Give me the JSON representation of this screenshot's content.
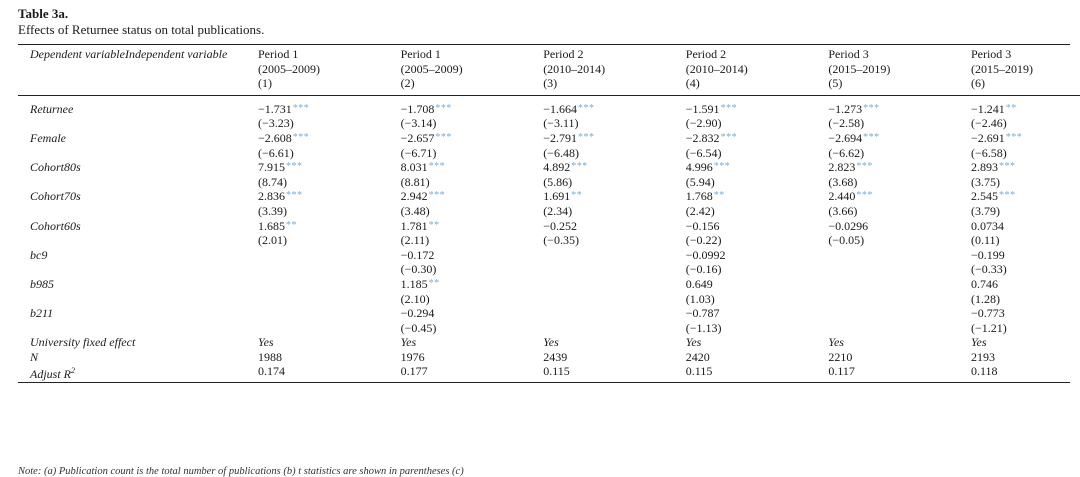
{
  "title": "Table 3a.",
  "caption": "Effects of Returnee status on total publications.",
  "header": {
    "first": "Dependent variableIndependent variable",
    "columns": [
      {
        "period": "Period 1",
        "years": "(2005–2009)",
        "num": "(1)"
      },
      {
        "period": "Period 1",
        "years": "(2005–2009)",
        "num": "(2)"
      },
      {
        "period": "Period 2",
        "years": "(2010–2014)",
        "num": "(3)"
      },
      {
        "period": "Period 2",
        "years": "(2010–2014)",
        "num": "(4)"
      },
      {
        "period": "Period 3",
        "years": "(2015–2019)",
        "num": "(5)"
      },
      {
        "period": "Period 3",
        "years": "(2015–2019)",
        "num": "(6)"
      }
    ]
  },
  "rows": [
    {
      "name": "Returnee",
      "coef": [
        "−1.731",
        "−1.708",
        "−1.664",
        "−1.591",
        "−1.273",
        "−1.241"
      ],
      "stars": [
        "***",
        "***",
        "***",
        "***",
        "***",
        "**"
      ],
      "t": [
        "(−3.23)",
        "(−3.14)",
        "(−3.11)",
        "(−2.90)",
        "(−2.58)",
        "(−2.46)"
      ]
    },
    {
      "name": "Female",
      "coef": [
        "−2.608",
        "−2.657",
        "−2.791",
        "−2.832",
        "−2.694",
        "−2.691"
      ],
      "stars": [
        "***",
        "***",
        "***",
        "***",
        "***",
        "***"
      ],
      "t": [
        "(−6.61)",
        "(−6.71)",
        "(−6.48)",
        "(−6.54)",
        "(−6.62)",
        "(−6.58)"
      ]
    },
    {
      "name": "Cohort80s",
      "coef": [
        "7.915",
        "8.031",
        "4.892",
        "4.996",
        "2.823",
        "2.893"
      ],
      "stars": [
        "***",
        "***",
        "***",
        "***",
        "***",
        "***"
      ],
      "t": [
        "(8.74)",
        "(8.81)",
        "(5.86)",
        "(5.94)",
        "(3.68)",
        "(3.75)"
      ]
    },
    {
      "name": "Cohort70s",
      "coef": [
        "2.836",
        "2.942",
        "1.691",
        "1.768",
        "2.440",
        "2.545"
      ],
      "stars": [
        "***",
        "***",
        "**",
        "**",
        "***",
        "***"
      ],
      "t": [
        "(3.39)",
        "(3.48)",
        "(2.34)",
        "(2.42)",
        "(3.66)",
        "(3.79)"
      ]
    },
    {
      "name": "Cohort60s",
      "coef": [
        "1.685",
        "1.781",
        "−0.252",
        "−0.156",
        "−0.0296",
        "0.0734"
      ],
      "stars": [
        "**",
        "**",
        "",
        "",
        "",
        ""
      ],
      "t": [
        "(2.01)",
        "(2.11)",
        "(−0.35)",
        "(−0.22)",
        "(−0.05)",
        "(0.11)"
      ]
    },
    {
      "name": "bc9",
      "coef": [
        "",
        "−0.172",
        "",
        "−0.0992",
        "",
        "−0.199"
      ],
      "stars": [
        "",
        "",
        "",
        "",
        "",
        ""
      ],
      "t": [
        "",
        "(−0.30)",
        "",
        "(−0.16)",
        "",
        "(−0.33)"
      ]
    },
    {
      "name": "b985",
      "coef": [
        "",
        "1.185",
        "",
        "0.649",
        "",
        "0.746"
      ],
      "stars": [
        "",
        "**",
        "",
        "",
        "",
        ""
      ],
      "t": [
        "",
        "(2.10)",
        "",
        "(1.03)",
        "",
        "(1.28)"
      ]
    },
    {
      "name": "b211",
      "coef": [
        "",
        "−0.294",
        "",
        "−0.787",
        "",
        "−0.773"
      ],
      "stars": [
        "",
        "",
        "",
        "",
        "",
        ""
      ],
      "t": [
        "",
        "(−0.45)",
        "",
        "(−1.13)",
        "",
        "(−1.21)"
      ]
    }
  ],
  "footer_rows": [
    {
      "name": "University fixed effect",
      "values": [
        "Yes",
        "Yes",
        "Yes",
        "Yes",
        "Yes",
        "Yes"
      ]
    },
    {
      "name": "N",
      "values": [
        "1988",
        "1976",
        "2439",
        "2420",
        "2210",
        "2193"
      ]
    }
  ],
  "adjr2": {
    "name_base": "Adjust R",
    "name_sup": "2",
    "values": [
      "0.174",
      "0.177",
      "0.115",
      "0.115",
      "0.117",
      "0.118"
    ]
  },
  "note": "Note: (a) Publication count is the total number of publications (b) t statistics are shown in parentheses (c)"
}
